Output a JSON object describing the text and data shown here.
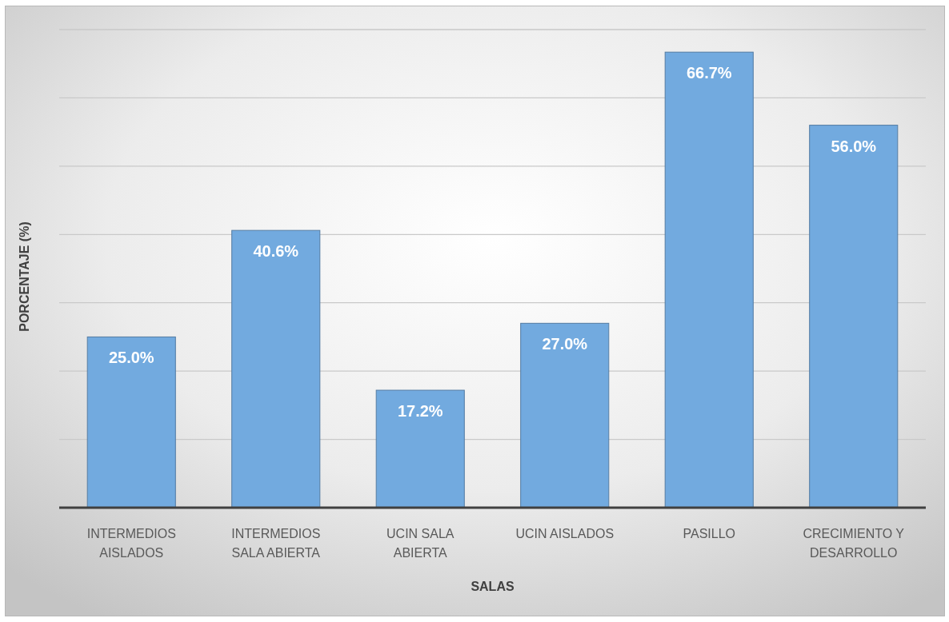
{
  "chart_data": {
    "type": "bar",
    "categories": [
      "INTERMEDIOS AISLADOS",
      "INTERMEDIOS SALA ABIERTA",
      "UCIN SALA ABIERTA",
      "UCIN AISLADOS",
      "PASILLO",
      "CRECIMIENTO Y DESARROLLO"
    ],
    "values": [
      25.0,
      40.6,
      17.2,
      27.0,
      66.7,
      56.0
    ],
    "value_labels": [
      "25.0%",
      "40.6%",
      "17.2%",
      "27.0%",
      "66.7%",
      "56.0%"
    ],
    "color": "#72aadf",
    "xlabel": "SALAS",
    "ylabel": "PORCENTAJE (%)",
    "ylim": [
      0,
      70
    ],
    "yticks": [
      {
        "value": 0,
        "label": null
      },
      {
        "value": 10,
        "label": null
      },
      {
        "value": 20,
        "label": null
      },
      {
        "value": 30,
        "label": null
      },
      {
        "value": 40,
        "label": null
      },
      {
        "value": 50,
        "label": null
      },
      {
        "value": 60,
        "label": null
      },
      {
        "value": 70,
        "label": null
      }
    ],
    "grid": "y",
    "tick_labels": "x"
  }
}
